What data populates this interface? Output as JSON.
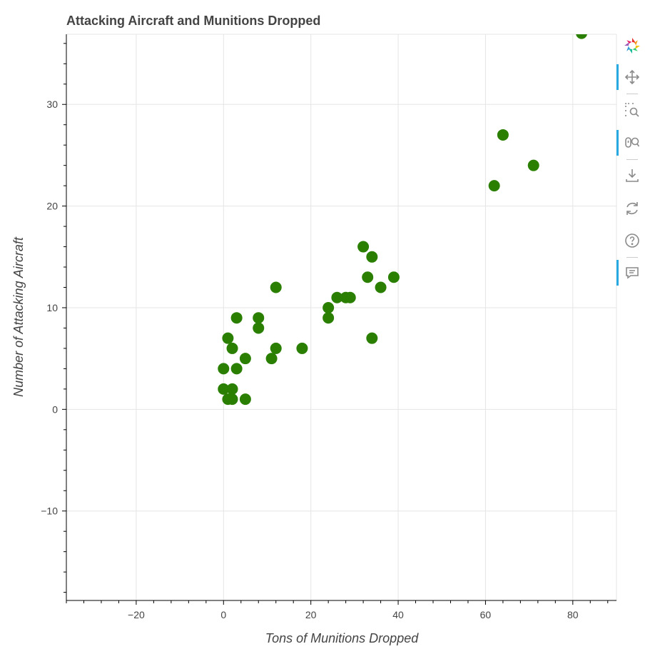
{
  "chart_data": {
    "type": "scatter",
    "title": "Attacking Aircraft and Munitions Dropped",
    "xlabel": "Tons of Munitions Dropped",
    "ylabel": "Number of Attacking Aircraft",
    "xlim": [
      -36,
      90
    ],
    "ylim": [
      -18.8,
      36.9
    ],
    "xticks": [
      -20,
      0,
      20,
      40,
      60,
      80
    ],
    "yticks": [
      -10,
      0,
      10,
      20,
      30
    ],
    "xtick_labels": [
      "−20",
      "0",
      "20",
      "40",
      "60",
      "80"
    ],
    "ytick_labels": [
      "−10",
      "0",
      "10",
      "20",
      "30"
    ],
    "grid": true,
    "marker_color": "#2a7f00",
    "points": [
      {
        "x": 82,
        "y": 37
      },
      {
        "x": 64,
        "y": 27
      },
      {
        "x": 71,
        "y": 24
      },
      {
        "x": 62,
        "y": 22
      },
      {
        "x": 32,
        "y": 16
      },
      {
        "x": 34,
        "y": 15
      },
      {
        "x": 33,
        "y": 13
      },
      {
        "x": 39,
        "y": 13
      },
      {
        "x": 36,
        "y": 12
      },
      {
        "x": 12,
        "y": 12
      },
      {
        "x": 26,
        "y": 11
      },
      {
        "x": 28,
        "y": 11
      },
      {
        "x": 29,
        "y": 11
      },
      {
        "x": 24,
        "y": 10
      },
      {
        "x": 24,
        "y": 9
      },
      {
        "x": 3,
        "y": 9
      },
      {
        "x": 8,
        "y": 9
      },
      {
        "x": 8,
        "y": 8
      },
      {
        "x": 1,
        "y": 7
      },
      {
        "x": 34,
        "y": 7
      },
      {
        "x": 2,
        "y": 6
      },
      {
        "x": 12,
        "y": 6
      },
      {
        "x": 18,
        "y": 6
      },
      {
        "x": 5,
        "y": 5
      },
      {
        "x": 11,
        "y": 5
      },
      {
        "x": 0,
        "y": 4
      },
      {
        "x": 3,
        "y": 4
      },
      {
        "x": 0,
        "y": 2
      },
      {
        "x": 2,
        "y": 2
      },
      {
        "x": 1,
        "y": 1
      },
      {
        "x": 2,
        "y": 1
      },
      {
        "x": 5,
        "y": 1
      }
    ]
  },
  "toolbar": {
    "tools": [
      {
        "name": "bokeh-logo-icon",
        "active": false,
        "interactable": true
      },
      {
        "name": "pan-tool-icon",
        "active": true,
        "interactable": true
      },
      {
        "name": "box-zoom-tool-icon",
        "active": false,
        "interactable": true
      },
      {
        "name": "wheel-zoom-tool-icon",
        "active": true,
        "interactable": true
      },
      {
        "name": "save-tool-icon",
        "active": false,
        "interactable": true
      },
      {
        "name": "reset-tool-icon",
        "active": false,
        "interactable": true
      },
      {
        "name": "help-tool-icon",
        "active": false,
        "interactable": true
      },
      {
        "name": "hover-tool-icon",
        "active": true,
        "interactable": true
      }
    ]
  }
}
